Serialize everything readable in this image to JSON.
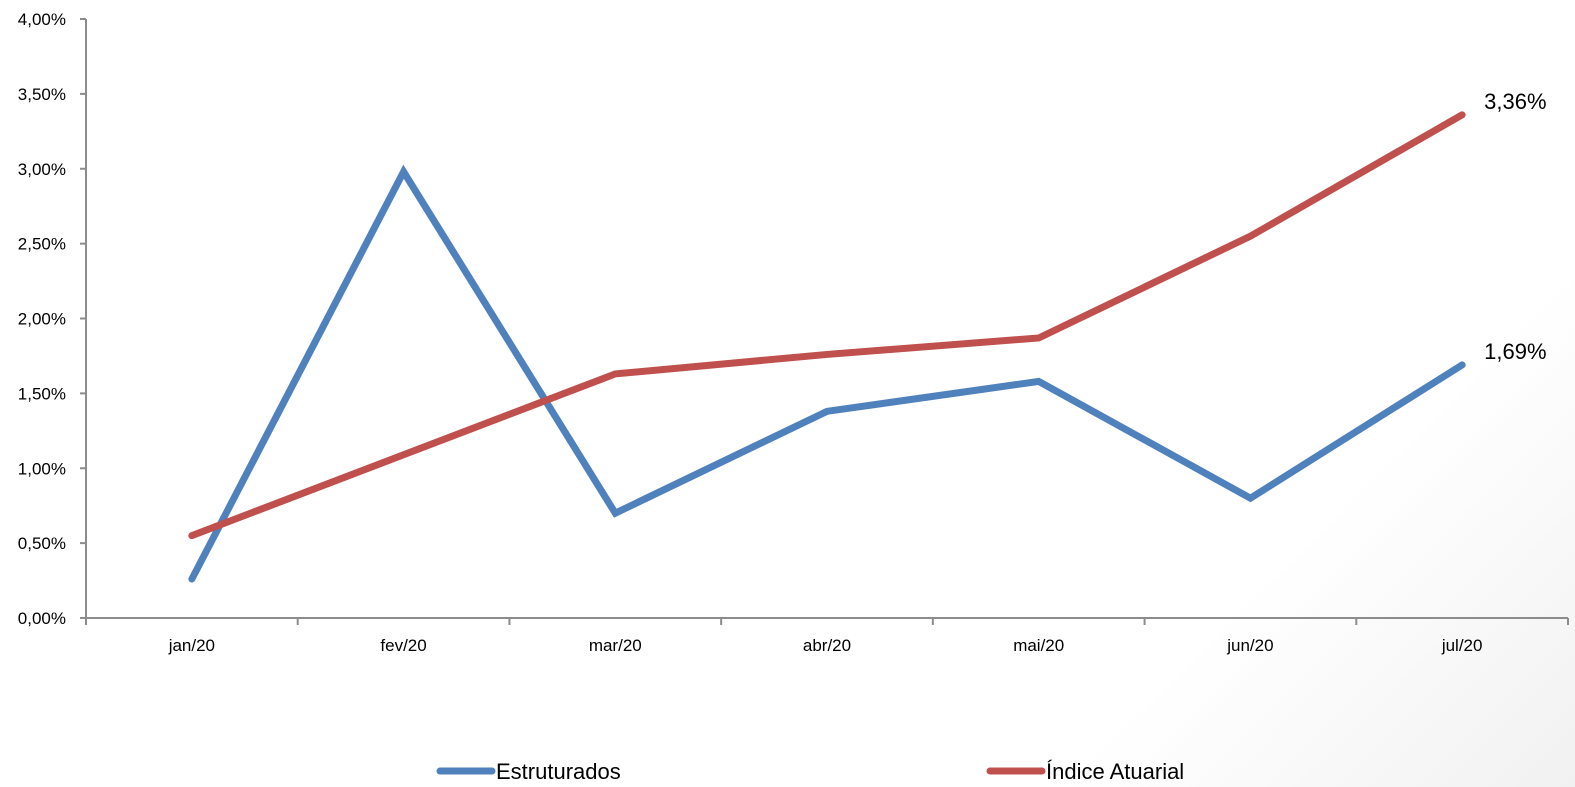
{
  "chart_data": {
    "type": "line",
    "categories": [
      "jan/20",
      "fev/20",
      "mar/20",
      "abr/20",
      "mai/20",
      "jun/20",
      "jul/20"
    ],
    "y_ticks": [
      "0,00%",
      "0,50%",
      "1,00%",
      "1,50%",
      "2,00%",
      "2,50%",
      "3,00%",
      "3,50%",
      "4,00%"
    ],
    "ylim": [
      0,
      4
    ],
    "grid": false,
    "legend_position": "bottom",
    "series": [
      {
        "name": "Estruturados",
        "color": "#4f81bd",
        "values": [
          0.26,
          2.98,
          0.7,
          1.38,
          1.58,
          0.8,
          1.69
        ],
        "end_label": "1,69%"
      },
      {
        "name": "Índice Atuarial",
        "color": "#c0504d",
        "values": [
          0.55,
          1.09,
          1.63,
          1.76,
          1.87,
          2.55,
          3.36
        ],
        "end_label": "3,36%"
      }
    ]
  }
}
